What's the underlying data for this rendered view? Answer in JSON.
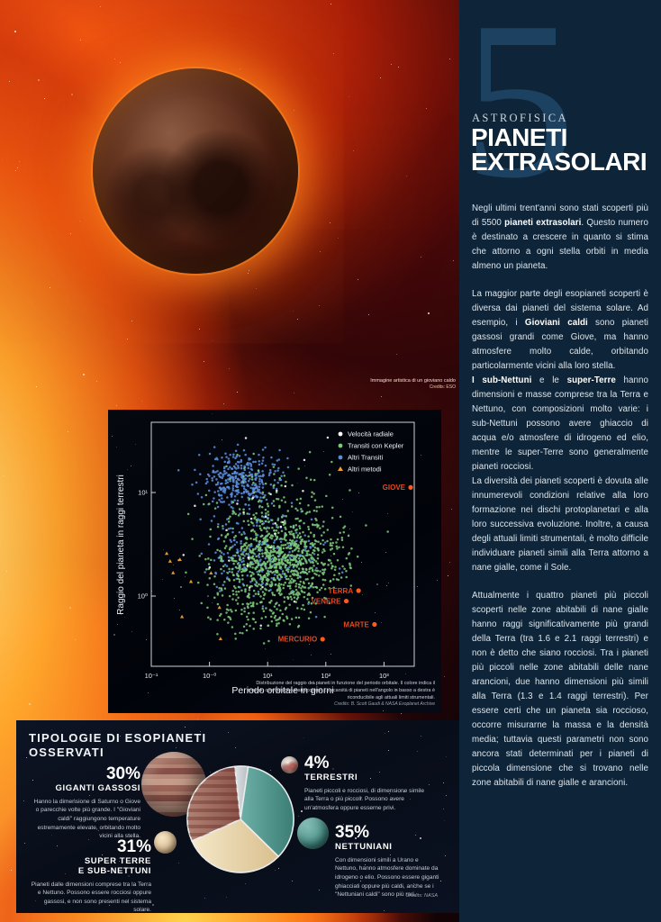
{
  "hero": {
    "caption": "Immagine artistica di un gioviano caldo",
    "caption_credits": "Credits: ESO"
  },
  "sidebar": {
    "issue_number": "5",
    "kicker": "ASTROFISICA",
    "title_line1": "PIANETI",
    "title_line2": "EXTRASOLARI",
    "paragraphs": [
      {
        "gap": false,
        "segments": [
          {
            "t": "Negli ultimi trent'anni sono stati scoperti più di 5500 ",
            "b": false
          },
          {
            "t": "pianeti extrasolari",
            "b": true
          },
          {
            "t": ". Questo numero è destinato a crescere in quanto si stima che attorno a ogni stella orbiti in media almeno un pianeta.",
            "b": false
          }
        ]
      },
      {
        "gap": true,
        "segments": [
          {
            "t": "La maggior parte degli esopianeti scoperti è diversa dai pianeti del sistema solare. Ad esempio, i ",
            "b": false
          },
          {
            "t": "Gioviani caldi",
            "b": true
          },
          {
            "t": " sono pianeti gassosi grandi come Giove, ma hanno atmosfere molto calde, orbitando particolarmente vicini alla loro stella.",
            "b": false
          }
        ]
      },
      {
        "gap": false,
        "segments": [
          {
            "t": "I sub-Nettuni",
            "b": true
          },
          {
            "t": " e le ",
            "b": false
          },
          {
            "t": "super-Terre",
            "b": true
          },
          {
            "t": " hanno dimensioni e masse comprese tra la Terra e Nettuno, con composizioni molto varie: i sub-Nettuni possono avere ghiaccio di acqua e/o atmosfere di idrogeno ed elio, mentre le super-Terre sono generalmente pianeti rocciosi.",
            "b": false
          }
        ]
      },
      {
        "gap": false,
        "segments": [
          {
            "t": "La diversità dei pianeti scoperti è dovuta alle innumerevoli condizioni relative alla loro formazione nei dischi protoplanetari e alla loro successiva evoluzione. Inoltre, a causa degli attuali limiti strumentali, è molto difficile individuare pianeti simili alla Terra attorno a nane gialle, come il Sole.",
            "b": false
          }
        ]
      },
      {
        "gap": true,
        "segments": [
          {
            "t": "Attualmente i quattro pianeti più piccoli scoperti nelle zone abitabili di nane gialle hanno raggi significativamente più grandi della Terra (tra 1.6 e 2.1 raggi terrestri) e non è detto che siano rocciosi. Tra i pianeti più piccoli nelle zone abitabili delle nane arancioni, due hanno dimensioni più simili alla Terra (1.3 e 1.4 raggi terrestri). Per essere certi che un pianeta sia roccioso, occorre misurarne la massa e la densità media; tuttavia questi parametri non sono ancora stati determinati per i pianeti di piccola dimensione che si trovano nelle zone abitabili di nane gialle e arancioni.",
            "b": false
          }
        ]
      }
    ]
  },
  "chart_data": [
    {
      "type": "scatter",
      "xlabel": "Periodo orbitale in giorni",
      "ylabel": "Raggio del pianeta in raggi terrestri",
      "x_scale": "log",
      "y_scale": "log",
      "x_ticks": [
        "10⁻¹",
        "10⁻⁰",
        "10¹",
        "10²",
        "10³"
      ],
      "x_tick_logs": [
        -1,
        0,
        1,
        2,
        3
      ],
      "y_ticks": [
        "10⁰",
        "10¹"
      ],
      "y_tick_logs": [
        0,
        1
      ],
      "xlim_log": [
        -1.05,
        3.52
      ],
      "ylim_log": [
        -0.68,
        1.67
      ],
      "grid": false,
      "legend_position": "top-right",
      "legend": [
        {
          "label": "Velocità radiale",
          "color": "#ffffff",
          "marker": "circle"
        },
        {
          "label": "Transiti con Kepler",
          "color": "#7dc87a",
          "marker": "circle"
        },
        {
          "label": "Altri Transiti",
          "color": "#5b8dd9",
          "marker": "circle"
        },
        {
          "label": "Altri metodi",
          "color": "#f0a030",
          "marker": "triangle"
        }
      ],
      "clusters": [
        {
          "name": "altri-transiti-gioviani-caldi",
          "color": "#5b8dd9",
          "marker": "circle",
          "n": 350,
          "cx": 0.55,
          "cy": 1.13,
          "sx": 0.33,
          "sy": 0.14
        },
        {
          "name": "altri-transiti-misti",
          "color": "#5b8dd9",
          "marker": "circle",
          "n": 260,
          "cx": 0.9,
          "cy": 0.4,
          "sx": 0.48,
          "sy": 0.2
        },
        {
          "name": "kepler-principale",
          "color": "#7dc87a",
          "marker": "circle",
          "n": 850,
          "cx": 1.2,
          "cy": 0.33,
          "sx": 0.55,
          "sy": 0.2
        },
        {
          "name": "kepler-giganti",
          "color": "#7dc87a",
          "marker": "circle",
          "n": 160,
          "cx": 1.15,
          "cy": 0.8,
          "sx": 0.55,
          "sy": 0.28
        },
        {
          "name": "kepler-piccoli",
          "color": "#7dc87a",
          "marker": "circle",
          "n": 120,
          "cx": 0.8,
          "cy": -0.15,
          "sx": 0.5,
          "sy": 0.15
        },
        {
          "name": "velocita-radiale",
          "color": "#ffffff",
          "marker": "circle",
          "n": 28,
          "cx": 0.9,
          "cy": 0.75,
          "sx": 0.75,
          "sy": 0.45
        },
        {
          "name": "altri-metodi",
          "color": "#f0a030",
          "marker": "triangle",
          "n": 9,
          "cx": 0.1,
          "cy": -0.05,
          "sx": 0.55,
          "sy": 0.3
        }
      ],
      "solar_system_planets": [
        {
          "label": "MERCURIO",
          "period_days": 88,
          "radius_earth": 0.383,
          "dy": 0
        },
        {
          "label": "VENERE",
          "period_days": 224.7,
          "radius_earth": 0.95,
          "dy": 3
        },
        {
          "label": "TERRA",
          "period_days": 365,
          "radius_earth": 1.0,
          "dy": -6
        },
        {
          "label": "MARTE",
          "period_days": 687,
          "radius_earth": 0.532,
          "dy": 0
        },
        {
          "label": "GIOVE",
          "period_days": 4331,
          "radius_earth": 11.2,
          "dy": 0
        }
      ],
      "annotation_color": "#e8481c",
      "caption": "Distribuzione del raggio dei pianeti in funzione del periodo orbitale. Il colore indica il metodo con cui sono stati scoperti. La scarsità di pianeti nell'angolo in basso a destra è riconducibile agli attuali limiti strumentali.",
      "credits": "Credits: B. Scott Gaudi & NASA Exoplanet Archive"
    },
    {
      "type": "pie",
      "title_line1": "TIPOLOGIE DI ESOPIANETI",
      "title_line2": "OSSERVATI",
      "start_angle_deg": -6,
      "slices": [
        {
          "pct": "4%",
          "value": 4,
          "label": "TERRESTRI",
          "label_line2": "",
          "color1": "#dde2e4",
          "color2": "#b6bdc1",
          "desc": "Pianeti piccoli e rocciosi, di dimensione simile alla Terra o più piccoli. Possono avere un'atmosfera oppure esserne privi."
        },
        {
          "pct": "35%",
          "value": 35,
          "label": "NETTUNIANI",
          "label_line2": "",
          "color1": "#6db0a7",
          "color2": "#3a7d75",
          "desc": "Con dimensioni simili a Urano e Nettuno, hanno atmosfere dominate da idrogeno o elio. Possono essere giganti ghiacciati oppure più caldi, anche se i \"Nettuniani caldi\" sono più rari."
        },
        {
          "pct": "31%",
          "value": 31,
          "label": "SUPER TERRE",
          "label_line2": "E SUB-NETTUNI",
          "color1": "#f5e8c8",
          "color2": "#d9bf8e",
          "desc": "Pianeti dalle dimensioni comprese tra la Terra e Nettuno. Possono essere rocciosi oppure gassosi, e non sono presenti nel sistema solare."
        },
        {
          "pct": "30%",
          "value": 30,
          "label": "GIGANTI GASSOSI",
          "label_line2": "",
          "color1": "#b08273",
          "color2": "#8a544b",
          "striped": true,
          "desc": "Hanno la dimensione di Saturno o Giove o parecchie volte più grande. I \"Gioviani caldi\" raggiungono temperature estremamente elevate, orbitando molto vicini alla stella."
        }
      ],
      "credits": "Credits: NASA"
    }
  ]
}
